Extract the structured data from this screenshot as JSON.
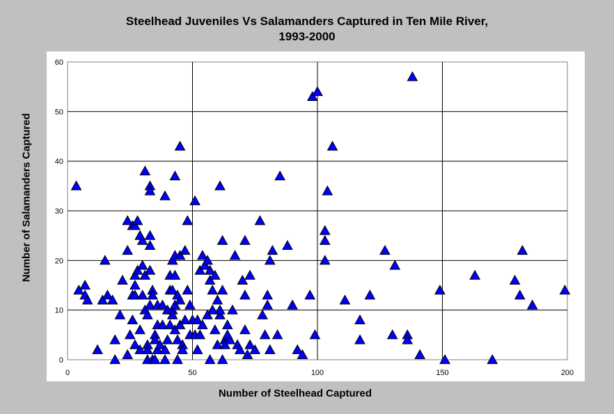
{
  "chart_data": {
    "type": "scatter",
    "title": "Steelhead Juveniles Vs Salamanders Captured in Ten Mile River,",
    "subtitle": "1993-2000",
    "xlabel": "Number of Steelhead Captured",
    "ylabel": "Number of Salamanders Captured",
    "xlim": [
      0,
      200
    ],
    "ylim": [
      0,
      60
    ],
    "xticks": [
      "0",
      "50",
      "100",
      "150",
      "200"
    ],
    "yticks": [
      "0",
      "10",
      "20",
      "30",
      "40",
      "50",
      "60"
    ],
    "grid": true,
    "marker_color": "#0000ff",
    "points": [
      [
        3.5,
        35
      ],
      [
        4.5,
        14
      ],
      [
        7,
        15
      ],
      [
        7,
        13
      ],
      [
        8,
        12
      ],
      [
        12,
        2
      ],
      [
        14,
        12
      ],
      [
        15,
        20
      ],
      [
        16,
        13
      ],
      [
        18,
        12
      ],
      [
        19,
        4
      ],
      [
        19,
        0
      ],
      [
        21,
        9
      ],
      [
        22,
        16
      ],
      [
        24,
        22
      ],
      [
        24,
        1
      ],
      [
        24,
        28
      ],
      [
        25,
        5
      ],
      [
        26,
        27
      ],
      [
        26,
        8
      ],
      [
        26,
        13
      ],
      [
        27,
        13
      ],
      [
        27,
        15
      ],
      [
        27,
        17
      ],
      [
        27,
        27
      ],
      [
        27,
        3
      ],
      [
        28,
        18
      ],
      [
        28,
        28
      ],
      [
        29,
        25
      ],
      [
        29,
        6
      ],
      [
        29,
        2
      ],
      [
        30,
        24
      ],
      [
        30,
        19
      ],
      [
        30,
        13
      ],
      [
        31,
        17
      ],
      [
        31,
        10
      ],
      [
        31,
        38
      ],
      [
        32,
        9
      ],
      [
        32,
        0
      ],
      [
        32,
        3
      ],
      [
        32,
        2
      ],
      [
        33,
        35
      ],
      [
        33,
        34
      ],
      [
        33,
        25
      ],
      [
        33,
        23
      ],
      [
        33,
        18
      ],
      [
        33,
        11
      ],
      [
        34,
        14
      ],
      [
        34,
        0
      ],
      [
        34,
        13
      ],
      [
        35,
        5
      ],
      [
        35,
        4
      ],
      [
        35,
        0
      ],
      [
        36,
        11
      ],
      [
        36,
        7
      ],
      [
        36,
        2
      ],
      [
        37,
        3
      ],
      [
        38,
        7
      ],
      [
        38,
        11
      ],
      [
        39,
        33
      ],
      [
        39,
        0
      ],
      [
        39,
        2
      ],
      [
        40,
        10
      ],
      [
        40,
        4
      ],
      [
        41,
        14
      ],
      [
        41,
        17
      ],
      [
        41,
        7
      ],
      [
        42,
        20
      ],
      [
        42,
        14
      ],
      [
        42,
        10
      ],
      [
        42,
        9
      ],
      [
        43,
        37
      ],
      [
        43,
        21
      ],
      [
        43,
        17
      ],
      [
        43,
        11
      ],
      [
        43,
        6
      ],
      [
        44,
        13
      ],
      [
        44,
        4
      ],
      [
        44,
        0
      ],
      [
        45,
        21
      ],
      [
        45,
        43
      ],
      [
        45,
        12
      ],
      [
        45,
        7
      ],
      [
        46,
        3
      ],
      [
        46,
        2
      ],
      [
        47,
        22
      ],
      [
        47,
        8
      ],
      [
        48,
        14
      ],
      [
        48,
        28
      ],
      [
        49,
        11
      ],
      [
        49,
        5
      ],
      [
        50,
        8
      ],
      [
        51,
        5
      ],
      [
        51,
        32
      ],
      [
        52,
        2
      ],
      [
        52,
        8
      ],
      [
        53,
        18
      ],
      [
        53,
        5
      ],
      [
        54,
        21
      ],
      [
        54,
        7
      ],
      [
        55,
        19
      ],
      [
        56,
        20
      ],
      [
        56,
        9
      ],
      [
        57,
        0
      ],
      [
        57,
        18
      ],
      [
        57,
        16
      ],
      [
        58,
        14
      ],
      [
        58,
        10
      ],
      [
        59,
        17
      ],
      [
        59,
        6
      ],
      [
        60,
        3
      ],
      [
        60,
        12
      ],
      [
        61,
        35
      ],
      [
        61,
        9
      ],
      [
        61,
        10
      ],
      [
        62,
        24
      ],
      [
        62,
        14
      ],
      [
        62,
        0
      ],
      [
        63,
        4
      ],
      [
        63,
        3
      ],
      [
        64,
        5
      ],
      [
        64,
        7
      ],
      [
        65,
        4
      ],
      [
        66,
        10
      ],
      [
        67,
        21
      ],
      [
        68,
        3
      ],
      [
        69,
        2
      ],
      [
        70,
        16
      ],
      [
        71,
        24
      ],
      [
        71,
        13
      ],
      [
        71,
        6
      ],
      [
        72,
        1
      ],
      [
        73,
        17
      ],
      [
        73,
        3
      ],
      [
        75,
        2
      ],
      [
        77,
        28
      ],
      [
        78,
        9
      ],
      [
        79,
        5
      ],
      [
        80,
        13
      ],
      [
        80,
        11
      ],
      [
        81,
        20
      ],
      [
        81,
        2
      ],
      [
        82,
        22
      ],
      [
        84,
        5
      ],
      [
        85,
        37
      ],
      [
        88,
        23
      ],
      [
        90,
        11
      ],
      [
        92,
        2
      ],
      [
        94,
        1
      ],
      [
        97,
        13
      ],
      [
        98,
        53
      ],
      [
        99,
        5
      ],
      [
        100,
        54
      ],
      [
        103,
        24
      ],
      [
        103,
        26
      ],
      [
        103,
        20
      ],
      [
        104,
        34
      ],
      [
        106,
        43
      ],
      [
        111,
        12
      ],
      [
        117,
        8
      ],
      [
        117,
        4
      ],
      [
        121,
        13
      ],
      [
        127,
        22
      ],
      [
        130,
        5
      ],
      [
        131,
        19
      ],
      [
        136,
        5
      ],
      [
        136,
        4
      ],
      [
        138,
        57
      ],
      [
        141,
        1
      ],
      [
        149,
        14
      ],
      [
        151,
        0
      ],
      [
        163,
        17
      ],
      [
        170,
        0
      ],
      [
        179,
        16
      ],
      [
        181,
        13
      ],
      [
        182,
        22
      ],
      [
        186,
        11
      ],
      [
        199,
        14
      ]
    ]
  }
}
